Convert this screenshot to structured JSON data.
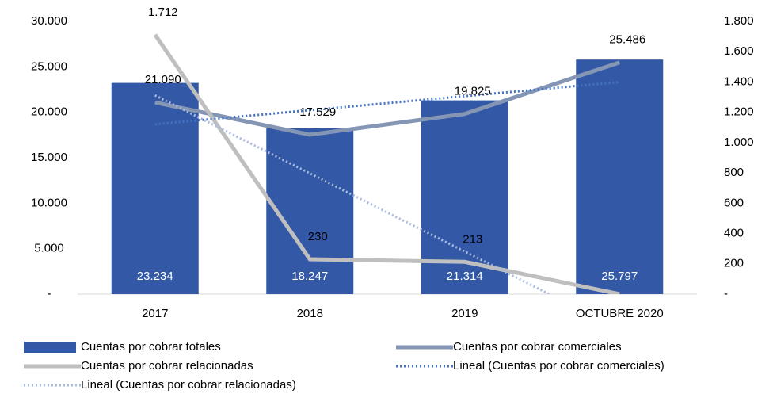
{
  "chart_data": {
    "type": "bar",
    "categories": [
      "2017",
      "2018",
      "2019",
      "OCTUBRE 2020"
    ],
    "ylim": [
      0,
      30000
    ],
    "yticks": [
      {
        "value": 0,
        "label": "-"
      },
      {
        "value": 5000,
        "label": "5.000"
      },
      {
        "value": 10000,
        "label": "10.000"
      },
      {
        "value": 15000,
        "label": "15.000"
      },
      {
        "value": 20000,
        "label": "20.000"
      },
      {
        "value": 25000,
        "label": "25.000"
      },
      {
        "value": 30000,
        "label": "30.000"
      }
    ],
    "y2lim": [
      0,
      1800
    ],
    "y2ticks": [
      {
        "value": 0,
        "label": "-"
      },
      {
        "value": 200,
        "label": "200"
      },
      {
        "value": 400,
        "label": "400"
      },
      {
        "value": 600,
        "label": "600"
      },
      {
        "value": 800,
        "label": "800"
      },
      {
        "value": 1000,
        "label": "1.000"
      },
      {
        "value": 1200,
        "label": "1.200"
      },
      {
        "value": 1400,
        "label": "1.400"
      },
      {
        "value": 1600,
        "label": "1.600"
      },
      {
        "value": 1800,
        "label": "1.800"
      }
    ],
    "series": [
      {
        "name": "Cuentas por cobrar totales",
        "type": "bar",
        "color": "#3358a5",
        "values": [
          23234,
          18247,
          21314,
          25797
        ],
        "value_labels": [
          "23.234",
          "18.247",
          "21.314",
          "25.797"
        ]
      },
      {
        "name": "Cuentas por cobrar comerciales",
        "type": "line",
        "color": "#8496b4",
        "values": [
          21090,
          17529,
          19825,
          25486
        ],
        "value_labels": [
          "21.090",
          "17.529",
          "19.825",
          "25.486"
        ]
      },
      {
        "name": "Cuentas por cobrar relacionadas",
        "type": "line",
        "axis": "y2",
        "color": "#bfbfbf",
        "values": [
          1712,
          230,
          213,
          0
        ],
        "value_labels": [
          "1.712",
          "230",
          "213",
          null
        ]
      },
      {
        "name": "Lineal (Cuentas por cobrar comerciales)",
        "type": "line",
        "dotted": true,
        "color": "#4472c4",
        "values": [
          18685,
          20233,
          21781,
          23330
        ]
      },
      {
        "name": "Lineal (Cuentas por cobrar relacionadas)",
        "type": "line",
        "dotted": true,
        "axis": "y2",
        "color": "#a9badf",
        "values": [
          1312,
          797,
          281,
          -234
        ]
      }
    ],
    "legend": "bottom"
  }
}
